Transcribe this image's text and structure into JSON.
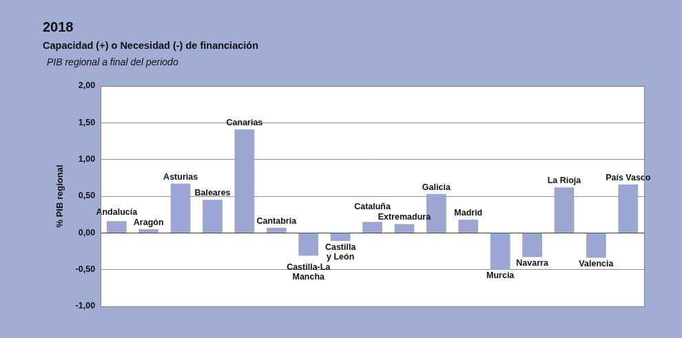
{
  "chart_data": {
    "type": "bar",
    "title": "2018",
    "subtitle": "Capacidad (+) o Necesidad (-) de financiación",
    "annotation": "PIB regional a final del periodo",
    "ylabel": "% PIB regional",
    "categories": [
      "Andalucía",
      "Aragón",
      "Asturias",
      "Baleares",
      "Canarias",
      "Cantabria",
      "Castilla-La Mancha",
      "Castilla y León",
      "Cataluña",
      "Extremadura",
      "Galicia",
      "Madrid",
      "Murcia",
      "Navarra",
      "La Rioja",
      "Valencia",
      "País Vasco"
    ],
    "values": [
      0.16,
      0.05,
      0.67,
      0.45,
      1.41,
      0.07,
      -0.31,
      -0.11,
      0.15,
      0.12,
      0.53,
      0.18,
      -0.5,
      -0.33,
      0.62,
      -0.34,
      0.66
    ],
    "color": "#9ba6d2",
    "ylim": [
      -1,
      2
    ],
    "yticks": [
      {
        "value": -1,
        "label": "-1,00"
      },
      {
        "value": -0.5,
        "label": "-0,50"
      },
      {
        "value": 0,
        "label": "0,00"
      },
      {
        "value": 0.5,
        "label": "0,50"
      },
      {
        "value": 1,
        "label": "1,00"
      },
      {
        "value": 1.5,
        "label": "1,50"
      },
      {
        "value": 2,
        "label": "2,00"
      }
    ],
    "grid": true,
    "tick_labels": "y"
  }
}
